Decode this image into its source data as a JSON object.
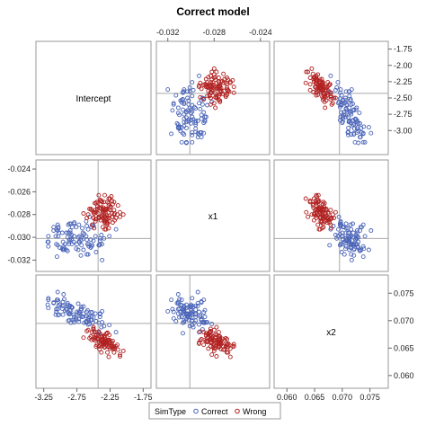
{
  "chart_data": {
    "type": "scatter",
    "title": "Correct model",
    "variables": [
      "Intercept",
      "x1",
      "x2"
    ],
    "axes": {
      "Intercept": {
        "ticks": [
          "-3.25",
          "-2.75",
          "-2.25",
          "-1.75"
        ],
        "right_ticks": [
          "-1.75",
          "-2.00",
          "-2.25",
          "-2.50",
          "-2.75",
          "-3.00"
        ],
        "range": [
          -3.3,
          -1.7
        ]
      },
      "x1": {
        "ticks": [
          "-0.032",
          "-0.028",
          "-0.024"
        ],
        "left_ticks": [
          "-0.024",
          "-0.026",
          "-0.028",
          "-0.030",
          "-0.032"
        ],
        "range": [
          -0.0326,
          -0.0236
        ]
      },
      "x2": {
        "ticks": [
          "0.060",
          "0.065",
          "0.070",
          "0.075"
        ],
        "right_ticks": [
          "0.075",
          "0.070",
          "0.065",
          "0.060"
        ],
        "range": [
          0.0585,
          0.0775
        ]
      }
    },
    "reference": {
      "Intercept": -2.43,
      "x1": -0.0301,
      "x2": 0.0695
    },
    "legend": {
      "title": "SimType",
      "items": [
        "Correct",
        "Wrong"
      ],
      "placement": "bottom"
    },
    "colors": {
      "Correct": "#4a64b8",
      "Wrong": "#b22222"
    },
    "series": [
      {
        "name": "Correct",
        "points": [
          [
            -2.6,
            -0.029,
            0.0697
          ],
          [
            -2.16,
            -0.0293,
            0.0679
          ],
          [
            -2.97,
            -0.031,
            0.0722
          ],
          [
            -2.61,
            -0.0286,
            0.0697
          ],
          [
            -2.41,
            -0.0307,
            0.0677
          ],
          [
            -2.84,
            -0.0288,
            0.0696
          ],
          [
            -3.04,
            -0.0289,
            0.0738
          ],
          [
            -3.04,
            -0.0294,
            0.0752
          ],
          [
            -2.85,
            -0.0296,
            0.0713
          ],
          [
            -2.61,
            -0.0299,
            0.0699
          ],
          [
            -3.18,
            -0.0304,
            0.0723
          ],
          [
            -2.66,
            -0.0296,
            0.0707
          ],
          [
            -3.18,
            -0.0308,
            0.0738
          ],
          [
            -3.05,
            -0.0317,
            0.0738
          ],
          [
            -2.84,
            -0.03,
            0.0719
          ],
          [
            -2.42,
            -0.0283,
            0.0679
          ],
          [
            -3.19,
            -0.0304,
            0.0729
          ],
          [
            -2.69,
            -0.0316,
            0.0721
          ],
          [
            -3.04,
            -0.0307,
            0.0721
          ],
          [
            -3.07,
            -0.0299,
            0.0711
          ],
          [
            -3.18,
            -0.0299,
            0.0741
          ],
          [
            -2.8,
            -0.0304,
            0.0711
          ],
          [
            -2.71,
            -0.0304,
            0.0713
          ],
          [
            -2.72,
            -0.0289,
            0.0698
          ],
          [
            -2.95,
            -0.0311,
            0.0748
          ],
          [
            -2.47,
            -0.0299,
            0.0713
          ],
          [
            -2.53,
            -0.0308,
            0.0707
          ],
          [
            -3.03,
            -0.0291,
            0.0735
          ],
          [
            -2.4,
            -0.0303,
            0.0713
          ],
          [
            -2.96,
            -0.0304,
            0.0711
          ],
          [
            -2.38,
            -0.0298,
            0.0688
          ],
          [
            -2.88,
            -0.0296,
            0.07
          ],
          [
            -2.42,
            -0.0307,
            0.0696
          ],
          [
            -2.85,
            -0.0294,
            0.0727
          ],
          [
            -2.51,
            -0.0289,
            0.0696
          ],
          [
            -2.26,
            -0.0299,
            0.0692
          ],
          [
            -2.54,
            -0.0302,
            0.0701
          ],
          [
            -2.59,
            -0.0306,
            0.0719
          ],
          [
            -2.53,
            -0.0291,
            0.0701
          ],
          [
            -3.06,
            -0.0306,
            0.0721
          ],
          [
            -2.82,
            -0.0306,
            0.0724
          ],
          [
            -2.69,
            -0.0303,
            0.0708
          ],
          [
            -2.46,
            -0.0313,
            0.0699
          ],
          [
            -2.96,
            -0.0311,
            0.0734
          ],
          [
            -2.37,
            -0.0306,
            0.0697
          ],
          [
            -2.71,
            -0.0299,
            0.0716
          ],
          [
            -2.82,
            -0.0291,
            0.0701
          ],
          [
            -2.97,
            -0.0296,
            0.0727
          ],
          [
            -3.06,
            -0.0293,
            0.0716
          ],
          [
            -2.91,
            -0.0296,
            0.072
          ],
          [
            -3.03,
            -0.0292,
            0.071
          ],
          [
            -2.73,
            -0.0311,
            0.0731
          ],
          [
            -2.68,
            -0.0307,
            0.0721
          ],
          [
            -2.79,
            -0.0287,
            0.0697
          ],
          [
            -2.5,
            -0.029,
            0.0684
          ],
          [
            -2.68,
            -0.03,
            0.0725
          ],
          [
            -2.54,
            -0.0309,
            0.0715
          ],
          [
            -2.93,
            -0.0306,
            0.0718
          ],
          [
            -2.86,
            -0.0302,
            0.0712
          ],
          [
            -2.76,
            -0.0291,
            0.0703
          ],
          [
            -2.89,
            -0.03,
            0.0729
          ],
          [
            -2.79,
            -0.0299,
            0.0701
          ],
          [
            -2.37,
            -0.032,
            0.0717
          ],
          [
            -2.75,
            -0.0306,
            0.0716
          ],
          [
            -2.83,
            -0.0302,
            0.0724
          ],
          [
            -2.64,
            -0.0297,
            0.0696
          ],
          [
            -3.01,
            -0.0309,
            0.0729
          ],
          [
            -2.56,
            -0.0282,
            0.0694
          ],
          [
            -2.87,
            -0.0306,
            0.0727
          ],
          [
            -2.73,
            -0.03,
            0.0714
          ],
          [
            -2.4,
            -0.0306,
            0.0712
          ],
          [
            -2.6,
            -0.0302,
            0.0708
          ],
          [
            -2.58,
            -0.0293,
            0.0693
          ],
          [
            -2.76,
            -0.031,
            0.0706
          ],
          [
            -3.1,
            -0.0291,
            0.0733
          ],
          [
            -2.87,
            -0.0304,
            0.0712
          ],
          [
            -2.67,
            -0.0292,
            0.0707
          ],
          [
            -2.86,
            -0.0288,
            0.0719
          ],
          [
            -2.91,
            -0.0311,
            0.0721
          ],
          [
            -2.57,
            -0.0308,
            0.0707
          ],
          [
            -2.65,
            -0.0301,
            0.0726
          ],
          [
            -2.58,
            -0.0315,
            0.0704
          ],
          [
            -2.95,
            -0.0308,
            0.0728
          ],
          [
            -2.65,
            -0.0311,
            0.0713
          ],
          [
            -2.79,
            -0.0288,
            0.0707
          ],
          [
            -3.02,
            -0.0296,
            0.0711
          ],
          [
            -3.03,
            -0.0299,
            0.0727
          ],
          [
            -2.72,
            -0.0304,
            0.0703
          ],
          [
            -2.88,
            -0.0289,
            0.0715
          ],
          [
            -2.83,
            -0.0298,
            0.0725
          ],
          [
            -3.1,
            -0.0294,
            0.0732
          ],
          [
            -2.34,
            -0.0301,
            0.069
          ],
          [
            -2.89,
            -0.0312,
            0.0732
          ],
          [
            -2.4,
            -0.0301,
            0.0707
          ],
          [
            -2.86,
            -0.0302,
            0.0701
          ],
          [
            -2.94,
            -0.031,
            0.0739
          ],
          [
            -2.52,
            -0.0307,
            0.0715
          ],
          [
            -2.57,
            -0.0306,
            0.07
          ],
          [
            -2.5,
            -0.0303,
            0.0706
          ],
          [
            -2.6,
            -0.0315,
            0.0716
          ]
        ]
      },
      {
        "name": "Wrong",
        "points": [
          [
            -2.39,
            -0.0274,
            0.0664
          ],
          [
            -2.31,
            -0.0285,
            0.0676
          ],
          [
            -2.39,
            -0.0285,
            0.0675
          ],
          [
            -2.5,
            -0.0278,
            0.0688
          ],
          [
            -2.42,
            -0.0283,
            0.068
          ],
          [
            -2.24,
            -0.0273,
            0.066
          ],
          [
            -2.46,
            -0.027,
            0.0653
          ],
          [
            -2.31,
            -0.0275,
            0.0659
          ],
          [
            -2.47,
            -0.0276,
            0.0679
          ],
          [
            -2.18,
            -0.0285,
            0.0649
          ],
          [
            -2.33,
            -0.0293,
            0.0658
          ],
          [
            -2.21,
            -0.0287,
            0.0663
          ],
          [
            -2.33,
            -0.0263,
            0.0657
          ],
          [
            -2.29,
            -0.0284,
            0.0678
          ],
          [
            -2.05,
            -0.028,
            0.0645
          ],
          [
            -2.27,
            -0.0278,
            0.0665
          ],
          [
            -2.1,
            -0.0282,
            0.0638
          ],
          [
            -2.36,
            -0.0291,
            0.0666
          ],
          [
            -2.35,
            -0.0274,
            0.0657
          ],
          [
            -2.34,
            -0.0269,
            0.0657
          ],
          [
            -2.29,
            -0.0269,
            0.0642
          ],
          [
            -2.27,
            -0.0266,
            0.0634
          ],
          [
            -2.46,
            -0.0284,
            0.0673
          ],
          [
            -2.27,
            -0.027,
            0.0652
          ],
          [
            -2.33,
            -0.0286,
            0.0663
          ],
          [
            -2.6,
            -0.0283,
            0.0681
          ],
          [
            -2.47,
            -0.0286,
            0.0669
          ],
          [
            -2.53,
            -0.0276,
            0.0665
          ],
          [
            -2.23,
            -0.0264,
            0.0654
          ],
          [
            -2.65,
            -0.0279,
            0.0669
          ],
          [
            -2.38,
            -0.0268,
            0.0642
          ],
          [
            -2.3,
            -0.0289,
            0.0656
          ],
          [
            -2.32,
            -0.0278,
            0.0659
          ],
          [
            -2.41,
            -0.0274,
            0.0648
          ],
          [
            -2.34,
            -0.0276,
            0.0671
          ],
          [
            -2.33,
            -0.0287,
            0.0673
          ],
          [
            -2.29,
            -0.0287,
            0.0677
          ],
          [
            -2.56,
            -0.0275,
            0.0668
          ],
          [
            -2.31,
            -0.0293,
            0.066
          ],
          [
            -2.37,
            -0.0269,
            0.0666
          ],
          [
            -2.33,
            -0.0282,
            0.0669
          ],
          [
            -2.49,
            -0.0292,
            0.068
          ],
          [
            -2.44,
            -0.0275,
            0.0666
          ],
          [
            -2.32,
            -0.0276,
            0.0662
          ],
          [
            -2.26,
            -0.0286,
            0.0661
          ],
          [
            -2.26,
            -0.0281,
            0.0665
          ],
          [
            -2.38,
            -0.0282,
            0.0665
          ],
          [
            -2.26,
            -0.0283,
            0.0674
          ],
          [
            -2.32,
            -0.0282,
            0.066
          ],
          [
            -2.48,
            -0.027,
            0.0668
          ],
          [
            -2.34,
            -0.0281,
            0.0652
          ],
          [
            -2.49,
            -0.0279,
            0.067
          ],
          [
            -2.21,
            -0.0271,
            0.0648
          ],
          [
            -2.34,
            -0.0278,
            0.0661
          ],
          [
            -2.3,
            -0.0281,
            0.0664
          ],
          [
            -2.18,
            -0.0279,
            0.065
          ],
          [
            -2.54,
            -0.0275,
            0.0671
          ],
          [
            -2.27,
            -0.0272,
            0.0653
          ],
          [
            -2.37,
            -0.0281,
            0.0671
          ],
          [
            -2.43,
            -0.0279,
            0.0675
          ],
          [
            -2.39,
            -0.0275,
            0.0658
          ],
          [
            -2.29,
            -0.0288,
            0.0665
          ],
          [
            -2.42,
            -0.0263,
            0.0653
          ],
          [
            -2.45,
            -0.0269,
            0.0656
          ],
          [
            -2.47,
            -0.0284,
            0.0679
          ],
          [
            -2.52,
            -0.0289,
            0.0679
          ],
          [
            -2.22,
            -0.0282,
            0.066
          ],
          [
            -2.19,
            -0.028,
            0.0649
          ],
          [
            -2.44,
            -0.0273,
            0.0667
          ],
          [
            -2.22,
            -0.0268,
            0.0652
          ],
          [
            -2.33,
            -0.0276,
            0.0651
          ],
          [
            -2.14,
            -0.028,
            0.0656
          ],
          [
            -2.27,
            -0.0292,
            0.0664
          ],
          [
            -2.31,
            -0.0283,
            0.0661
          ],
          [
            -2.39,
            -0.0268,
            0.0658
          ],
          [
            -2.19,
            -0.0269,
            0.0642
          ],
          [
            -2.34,
            -0.0285,
            0.0671
          ],
          [
            -2.1,
            -0.0278,
            0.0635
          ],
          [
            -2.39,
            -0.0271,
            0.0665
          ],
          [
            -2.36,
            -0.0278,
            0.0654
          ],
          [
            -2.13,
            -0.0272,
            0.0647
          ],
          [
            -2.5,
            -0.0283,
            0.0685
          ],
          [
            -2.25,
            -0.0276,
            0.0655
          ],
          [
            -2.25,
            -0.0274,
            0.0658
          ],
          [
            -2.58,
            -0.028,
            0.0683
          ],
          [
            -2.5,
            -0.0283,
            0.0666
          ],
          [
            -2.35,
            -0.0277,
            0.0662
          ],
          [
            -2.42,
            -0.0282,
            0.0667
          ],
          [
            -2.46,
            -0.0278,
            0.0674
          ],
          [
            -2.32,
            -0.0286,
            0.0663
          ],
          [
            -2.48,
            -0.0278,
            0.0664
          ],
          [
            -2.19,
            -0.0276,
            0.0653
          ],
          [
            -2.22,
            -0.0279,
            0.0654
          ],
          [
            -2.32,
            -0.0275,
            0.0661
          ],
          [
            -2.36,
            -0.0283,
            0.0665
          ],
          [
            -2.41,
            -0.0283,
            0.066
          ],
          [
            -2.16,
            -0.0283,
            0.0653
          ],
          [
            -2.25,
            -0.0266,
            0.0649
          ],
          [
            -2.4,
            -0.0267,
            0.0656
          ],
          [
            -2.36,
            -0.0275,
            0.066
          ]
        ]
      }
    ]
  }
}
